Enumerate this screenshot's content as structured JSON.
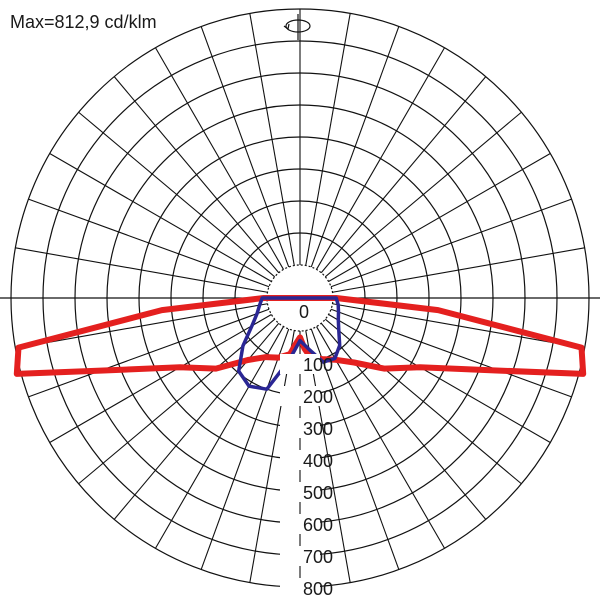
{
  "chart_data": {
    "type": "polar",
    "max_label": "Max=812,9 cd/klm",
    "radial_ticks": [
      "0",
      "100",
      "200",
      "300",
      "400",
      "500",
      "600",
      "700",
      "800"
    ],
    "r_max": 800,
    "angle_grid_deg": 10,
    "rotation_symbol": "⟲",
    "series": [
      {
        "color": "#e4201f",
        "angles": [
          -90,
          -85,
          -80,
          -75,
          -70,
          -60,
          -50,
          -40,
          -30,
          -20,
          -10,
          -5,
          0,
          5,
          10,
          20,
          30,
          40,
          50,
          60,
          70,
          75,
          80,
          85,
          90
        ],
        "values": [
          10,
          330,
          790,
          813,
          560,
          330,
          240,
          150,
          110,
          95,
          75,
          40,
          20,
          55,
          85,
          100,
          120,
          160,
          240,
          330,
          560,
          813,
          790,
          330,
          10
        ]
      },
      {
        "color": "#2a2694",
        "angles": [
          -90,
          -80,
          -70,
          -60,
          -50,
          -40,
          -30,
          -20,
          -10,
          0,
          10,
          20,
          30,
          40,
          50,
          60,
          70,
          80,
          90
        ],
        "values": [
          15,
          25,
          40,
          70,
          130,
          195,
          215,
          200,
          95,
          30,
          60,
          110,
          115,
          90,
          55,
          35,
          25,
          18,
          10
        ]
      }
    ]
  }
}
